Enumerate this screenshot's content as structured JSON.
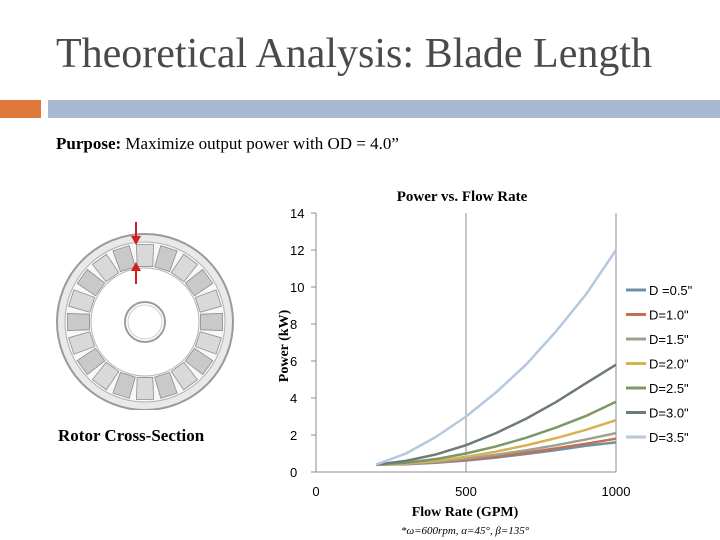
{
  "slide": {
    "title": "Theoretical Analysis: Blade Length",
    "purpose_label": "Purpose:",
    "purpose_text": " Maximize output power with OD = 4.0”",
    "rotor_caption": "Rotor Cross-Section",
    "footnote": "*ω=600rpm, α=45°, β=135°"
  },
  "colors": {
    "title": "#4a4a4a",
    "accent_orange": "#e0773a",
    "accent_blue": "#a8b9d3"
  },
  "chart_data": {
    "type": "line",
    "title": "Power vs. Flow Rate",
    "xlabel": "Flow Rate (GPM)",
    "ylabel": "Power (kW)",
    "xlim": [
      0,
      1000
    ],
    "ylim": [
      0,
      14
    ],
    "x_ticks": [
      "0",
      "500",
      "1000"
    ],
    "y_ticks": [
      "0",
      "2",
      "4",
      "6",
      "8",
      "10",
      "12",
      "14"
    ],
    "grid": "vertical lines at x=500 and x=1000",
    "legend_position": "right",
    "x": [
      200,
      300,
      400,
      500,
      600,
      700,
      800,
      900,
      1000
    ],
    "series": [
      {
        "name": "D =0.5\"",
        "color": "#6f8fa8",
        "values": [
          0.4,
          0.42,
          0.5,
          0.62,
          0.78,
          0.97,
          1.18,
          1.42,
          1.6
        ]
      },
      {
        "name": "D=1.0\"",
        "color": "#c0714f",
        "values": [
          0.4,
          0.43,
          0.52,
          0.66,
          0.83,
          1.04,
          1.28,
          1.53,
          1.8
        ]
      },
      {
        "name": "D=1.5\"",
        "color": "#9ea092",
        "values": [
          0.4,
          0.44,
          0.55,
          0.72,
          0.93,
          1.17,
          1.45,
          1.76,
          2.1
        ]
      },
      {
        "name": "D=2.0\"",
        "color": "#d8b055",
        "values": [
          0.4,
          0.46,
          0.6,
          0.82,
          1.1,
          1.44,
          1.83,
          2.28,
          2.8
        ]
      },
      {
        "name": "D=2.5\"",
        "color": "#7b9868",
        "values": [
          0.4,
          0.5,
          0.7,
          1.0,
          1.38,
          1.85,
          2.4,
          3.03,
          3.8
        ]
      },
      {
        "name": "D=3.0\"",
        "color": "#6e7a78",
        "values": [
          0.4,
          0.6,
          0.95,
          1.45,
          2.1,
          2.88,
          3.78,
          4.8,
          5.8
        ]
      },
      {
        "name": "D=3.5\"",
        "color": "#b5c8de",
        "values": [
          0.4,
          1.0,
          1.9,
          3.0,
          4.3,
          5.8,
          7.6,
          9.6,
          12.0
        ]
      }
    ]
  }
}
